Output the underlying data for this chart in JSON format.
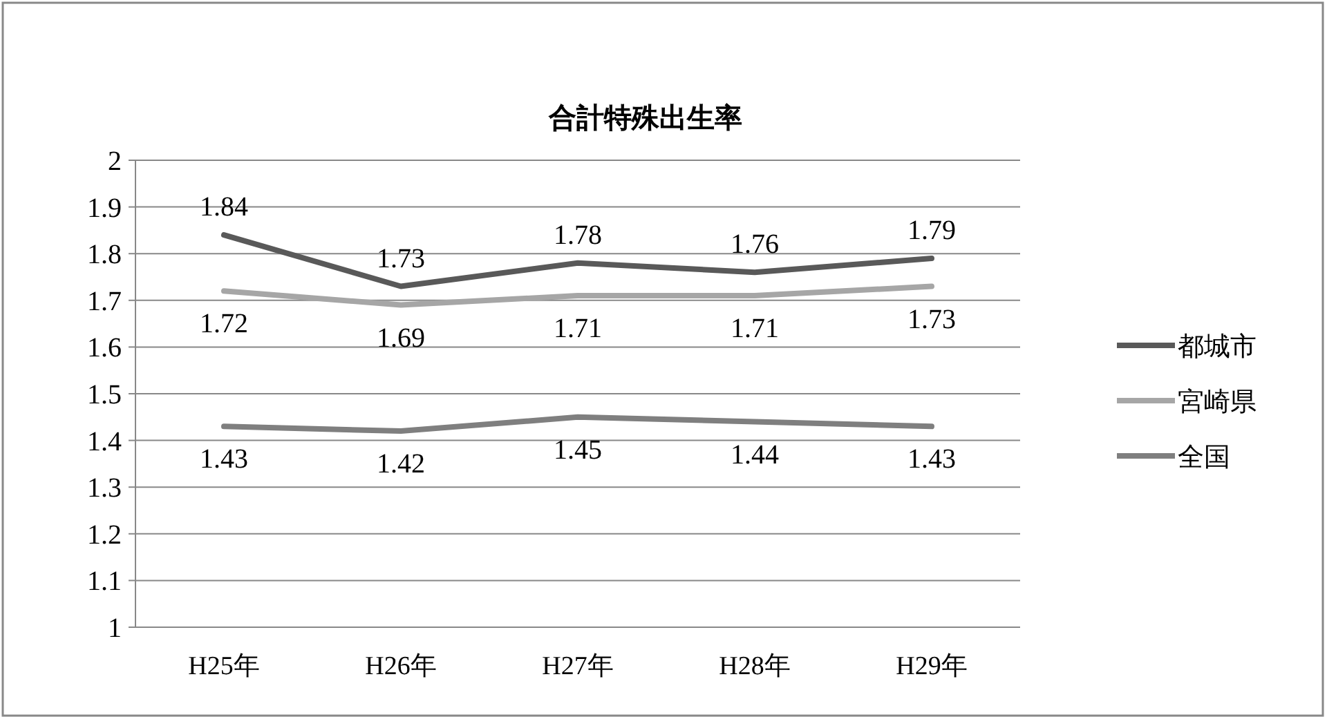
{
  "chart_data": {
    "type": "line",
    "title": "合計特殊出生率",
    "categories": [
      "H25年",
      "H26年",
      "H27年",
      "H28年",
      "H29年"
    ],
    "series": [
      {
        "name": "都城市",
        "color": "#595959",
        "values": [
          1.84,
          1.73,
          1.78,
          1.76,
          1.79
        ]
      },
      {
        "name": "宮崎県",
        "color": "#a6a6a6",
        "values": [
          1.72,
          1.69,
          1.71,
          1.71,
          1.73
        ]
      },
      {
        "name": "全国",
        "color": "#7f7f7f",
        "values": [
          1.43,
          1.42,
          1.45,
          1.44,
          1.43
        ]
      }
    ],
    "ylim": [
      1,
      2
    ],
    "yticks": [
      1,
      1.1,
      1.2,
      1.3,
      1.4,
      1.5,
      1.6,
      1.7,
      1.8,
      1.9,
      2
    ],
    "grid": "y",
    "legend": "right",
    "data_labels": true,
    "marker": "none",
    "line_style": "solid"
  }
}
